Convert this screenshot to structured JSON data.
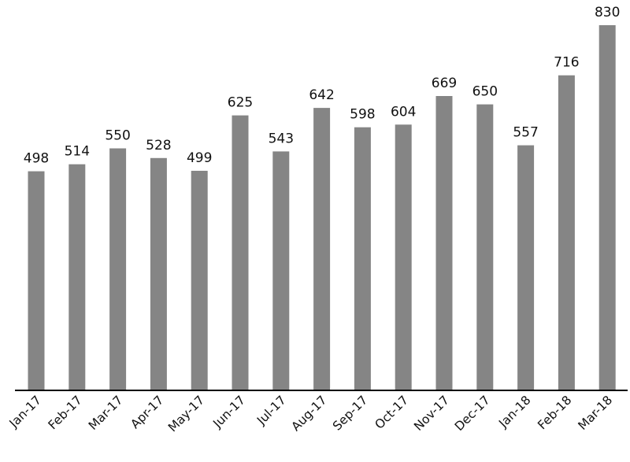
{
  "chart_data": {
    "type": "bar",
    "categories": [
      "Jan-17",
      "Feb-17",
      "Mar-17",
      "Apr-17",
      "May-17",
      "Jun-17",
      "Jul-17",
      "Aug-17",
      "Sep-17",
      "Oct-17",
      "Nov-17",
      "Dec-17",
      "Jan-18",
      "Feb-18",
      "Mar-18"
    ],
    "values": [
      498,
      514,
      550,
      528,
      499,
      625,
      543,
      642,
      598,
      604,
      669,
      650,
      557,
      716,
      830
    ],
    "title": "",
    "xlabel": "",
    "ylabel": "",
    "ylim": [
      0,
      830
    ],
    "grid": false,
    "legend": "none",
    "colors": {
      "bar": "#858585",
      "axis": "#000000",
      "text": "#111111"
    }
  }
}
